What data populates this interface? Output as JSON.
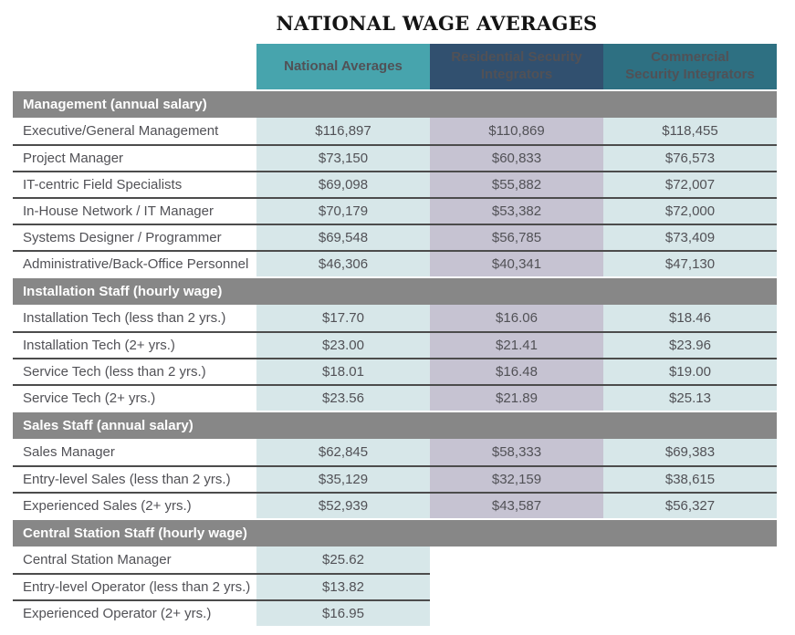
{
  "title": "NATIONAL WAGE AVERAGES",
  "columns": [
    "National Averages",
    "Residential Security Integrators",
    "Commercial Security Integrators"
  ],
  "colors": {
    "header_national": "#47a4ad",
    "header_residential": "#31506f",
    "header_commercial": "#2e7082",
    "cell_teal": "#d7e7e9",
    "cell_lavender": "#c6c3d2",
    "section_gray": "#878787",
    "divider": "#4c4c4c",
    "text_dark": "#515156"
  },
  "chart_data": {
    "type": "table",
    "title": "NATIONAL WAGE AVERAGES",
    "columns": [
      "National Averages",
      "Residential Security Integrators",
      "Commercial Security Integrators"
    ],
    "sections": [
      {
        "header": "Management (annual salary)",
        "rows": [
          {
            "label": "Executive/General Management",
            "values": [
              "$116,897",
              "$110,869",
              "$118,455"
            ]
          },
          {
            "label": "Project Manager",
            "values": [
              "$73,150",
              "$60,833",
              "$76,573"
            ]
          },
          {
            "label": "IT-centric Field Specialists",
            "values": [
              "$69,098",
              "$55,882",
              "$72,007"
            ]
          },
          {
            "label": "In-House Network / IT Manager",
            "values": [
              "$70,179",
              "$53,382",
              "$72,000"
            ]
          },
          {
            "label": "Systems Designer / Programmer",
            "values": [
              "$69,548",
              "$56,785",
              "$73,409"
            ]
          },
          {
            "label": "Administrative/Back-Office Personnel",
            "values": [
              "$46,306",
              "$40,341",
              "$47,130"
            ]
          }
        ]
      },
      {
        "header": "Installation Staff (hourly wage)",
        "rows": [
          {
            "label": "Installation Tech (less than 2 yrs.)",
            "values": [
              "$17.70",
              "$16.06",
              "$18.46"
            ]
          },
          {
            "label": "Installation Tech (2+ yrs.)",
            "values": [
              "$23.00",
              "$21.41",
              "$23.96"
            ]
          },
          {
            "label": "Service Tech (less than 2 yrs.)",
            "values": [
              "$18.01",
              "$16.48",
              "$19.00"
            ]
          },
          {
            "label": "Service Tech (2+ yrs.)",
            "values": [
              "$23.56",
              "$21.89",
              "$25.13"
            ]
          }
        ]
      },
      {
        "header": "Sales Staff (annual salary)",
        "rows": [
          {
            "label": "Sales Manager",
            "values": [
              "$62,845",
              "$58,333",
              "$69,383"
            ]
          },
          {
            "label": "Entry-level Sales (less than 2 yrs.)",
            "values": [
              "$35,129",
              "$32,159",
              "$38,615"
            ]
          },
          {
            "label": "Experienced Sales (2+ yrs.)",
            "values": [
              "$52,939",
              "$43,587",
              "$56,327"
            ]
          }
        ]
      },
      {
        "header": "Central Station Staff (hourly wage)",
        "rows": [
          {
            "label": "Central Station Manager",
            "values": [
              "$25.62"
            ]
          },
          {
            "label": "Entry-level Operator (less than 2 yrs.)",
            "values": [
              "$13.82"
            ]
          },
          {
            "label": "Experienced Operator (2+ yrs.)",
            "values": [
              "$16.95"
            ]
          }
        ]
      }
    ]
  }
}
